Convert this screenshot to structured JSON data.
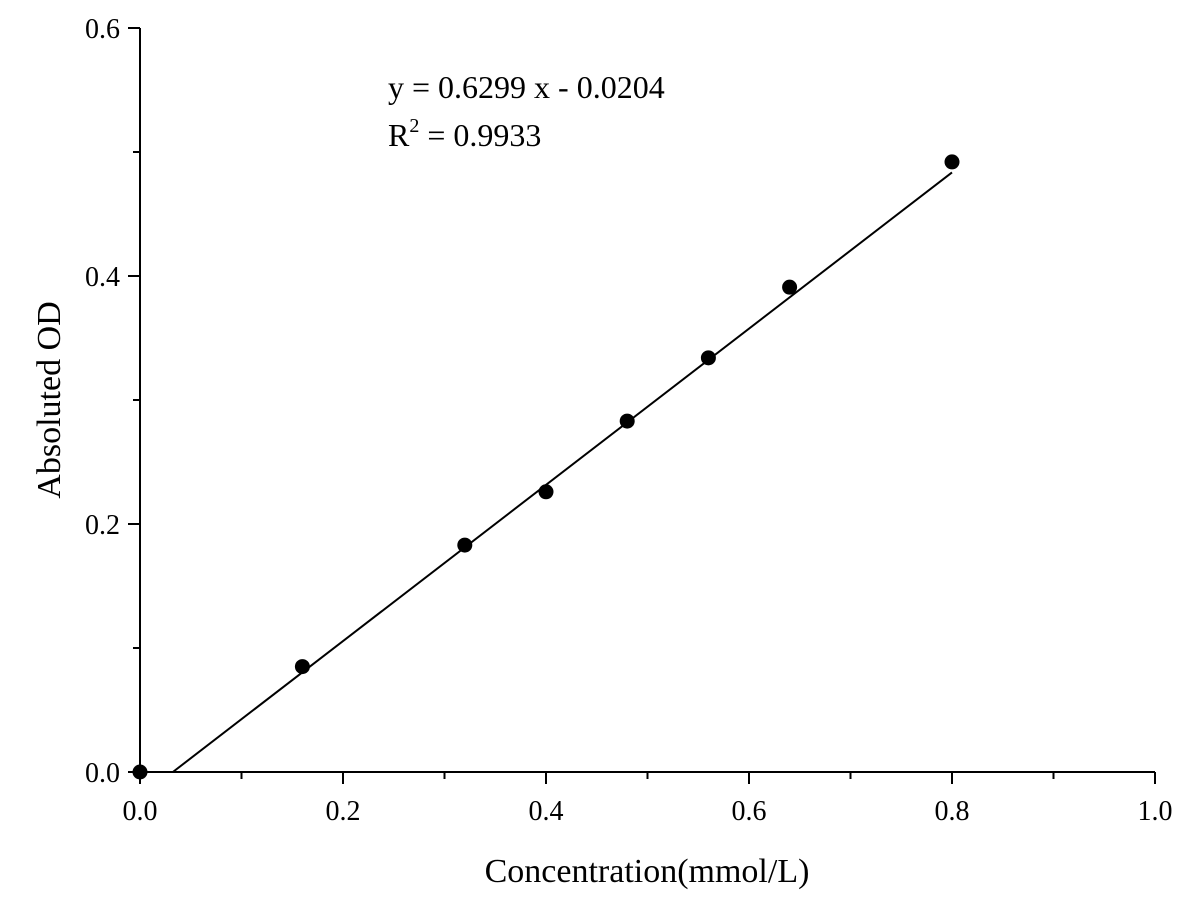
{
  "chart_data": {
    "type": "scatter",
    "xlabel": "Concentration(mmol/L)",
    "ylabel": "Absoluted OD",
    "xlim": [
      0,
      1.0
    ],
    "ylim": [
      0,
      0.6
    ],
    "x_ticks": [
      "0.0",
      "0.2",
      "0.4",
      "0.6",
      "0.8",
      "1.0"
    ],
    "y_ticks": [
      "0.0",
      "0.2",
      "0.4",
      "0.6"
    ],
    "x_tick_values": [
      0,
      0.2,
      0.4,
      0.6,
      0.8,
      1.0
    ],
    "y_tick_values": [
      0,
      0.2,
      0.4,
      0.6
    ],
    "x_minor_tick_values": [
      0.1,
      0.3,
      0.5,
      0.7,
      0.9
    ],
    "y_minor_tick_values": [
      0.1,
      0.3,
      0.5
    ],
    "grid": false,
    "series": [
      {
        "points": [
          {
            "x": 0.0,
            "y": 0.0
          },
          {
            "x": 0.16,
            "y": 0.085
          },
          {
            "x": 0.32,
            "y": 0.183
          },
          {
            "x": 0.4,
            "y": 0.226
          },
          {
            "x": 0.48,
            "y": 0.283
          },
          {
            "x": 0.56,
            "y": 0.334
          },
          {
            "x": 0.64,
            "y": 0.391
          },
          {
            "x": 0.8,
            "y": 0.492
          }
        ],
        "color": "#000000"
      }
    ],
    "fit": {
      "slope": 0.6299,
      "intercept": -0.0204,
      "x_range": [
        0.0324,
        0.8
      ],
      "equation": "y = 0.6299 x - 0.0204",
      "r2_prefix": "R",
      "r2_superscript": "2",
      "r2_value": " = 0.9933"
    }
  }
}
